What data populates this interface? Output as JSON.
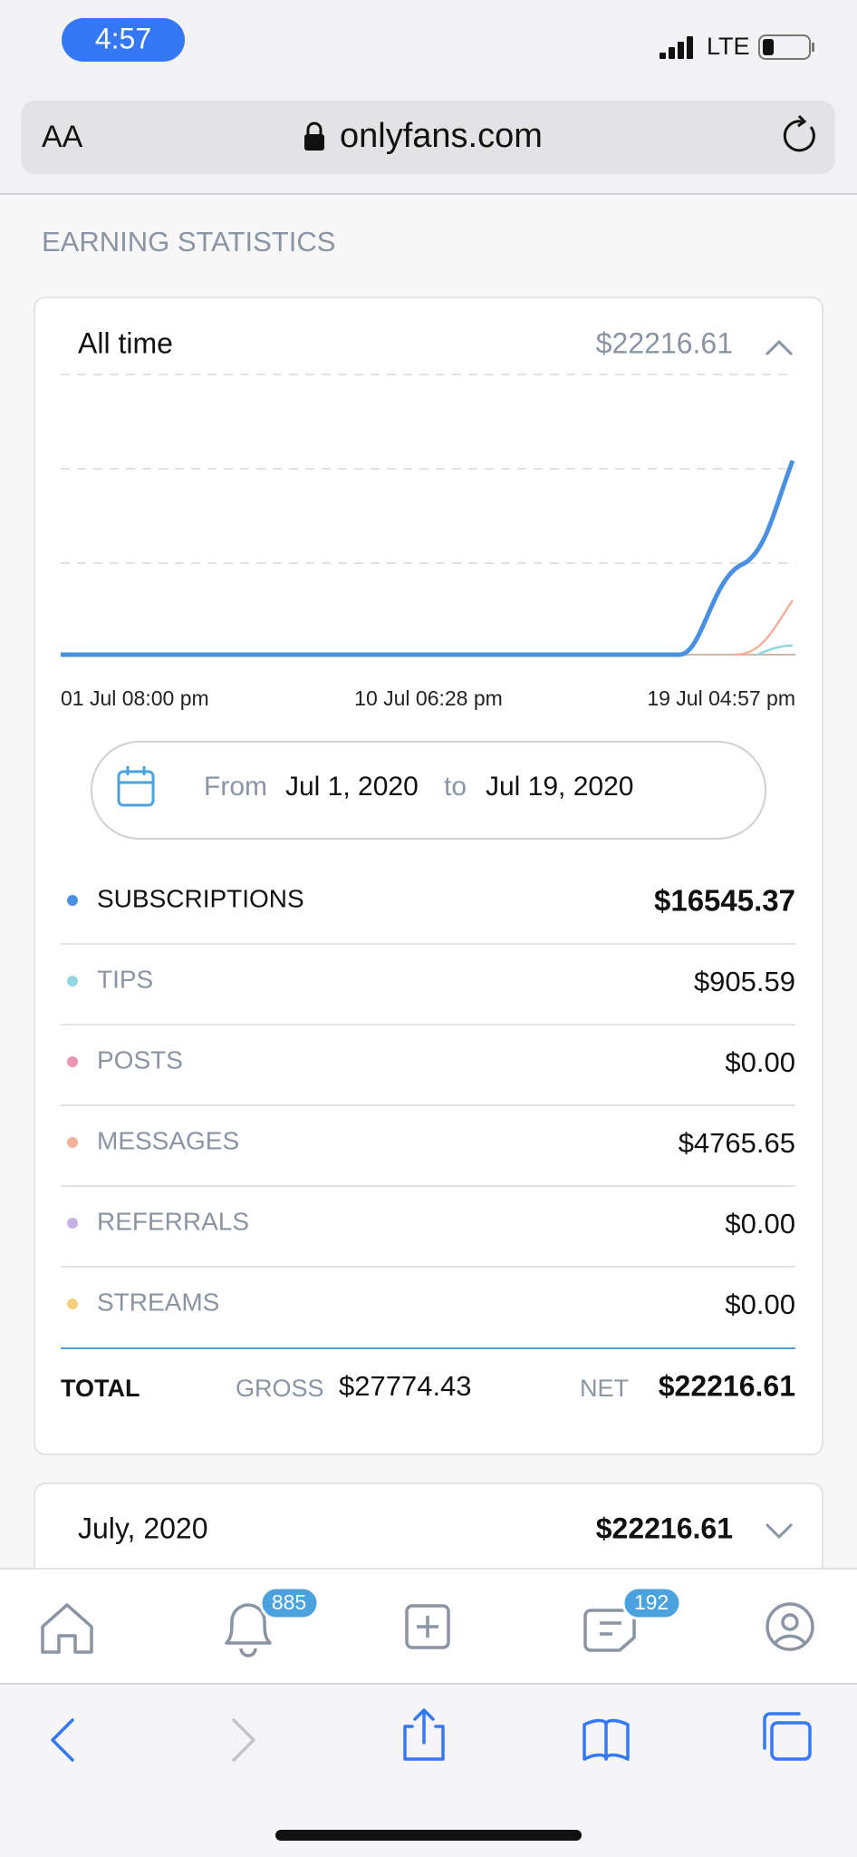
{
  "status_bar": {
    "time": "4:57",
    "network": "LTE"
  },
  "browser": {
    "text_size": "AA",
    "url": "onlyfans.com"
  },
  "page": {
    "heading": "EARNING STATISTICS",
    "summary": {
      "period": "All time",
      "amount": "$22216.61",
      "x_labels": [
        "01 Jul 08:00 pm",
        "10 Jul 06:28 pm",
        "19 Jul 04:57 pm"
      ],
      "date_range": {
        "from_label": "From",
        "from": "Jul 1, 2020",
        "to_label": "to",
        "to": "Jul 19, 2020"
      },
      "rows": [
        {
          "label": "SUBSCRIPTIONS",
          "amount": "$16545.37",
          "color": "#4a90e2"
        },
        {
          "label": "TIPS",
          "amount": "$905.59",
          "color": "#8fd8e0"
        },
        {
          "label": "POSTS",
          "amount": "$0.00",
          "color": "#ec93b0"
        },
        {
          "label": "MESSAGES",
          "amount": "$4765.65",
          "color": "#f2b09a"
        },
        {
          "label": "REFERRALS",
          "amount": "$0.00",
          "color": "#c4b2e6"
        },
        {
          "label": "STREAMS",
          "amount": "$0.00",
          "color": "#f3d17e"
        }
      ],
      "total": {
        "label": "TOTAL",
        "gross_label": "GROSS",
        "gross": "$27774.43",
        "net_label": "NET",
        "net": "$22216.61"
      }
    },
    "month": {
      "period": "July, 2020",
      "amount": "$22216.61"
    }
  },
  "tab_bar": {
    "notifications_badge": "885",
    "messages_badge": "192"
  }
}
